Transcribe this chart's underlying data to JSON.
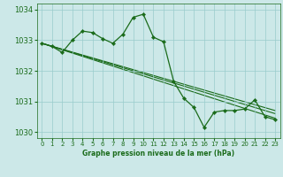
{
  "background_color": "#cce8e8",
  "grid_color": "#99cccc",
  "line_color": "#1a6b1a",
  "title": "Graphe pression niveau de la mer (hPa)",
  "xlim": [
    -0.5,
    23.5
  ],
  "ylim": [
    1029.8,
    1034.2
  ],
  "yticks": [
    1030,
    1031,
    1032,
    1033,
    1034
  ],
  "xticks": [
    0,
    1,
    2,
    3,
    4,
    5,
    6,
    7,
    8,
    9,
    10,
    11,
    12,
    13,
    14,
    15,
    16,
    17,
    18,
    19,
    20,
    21,
    22,
    23
  ],
  "main_series": {
    "x": [
      0,
      1,
      2,
      3,
      4,
      5,
      6,
      7,
      8,
      9,
      10,
      11,
      12,
      13,
      14,
      15,
      16,
      17,
      18,
      19,
      20,
      21,
      22,
      23
    ],
    "y": [
      1032.9,
      1032.8,
      1032.6,
      1033.0,
      1033.3,
      1033.25,
      1033.05,
      1032.9,
      1033.2,
      1033.75,
      1033.85,
      1033.1,
      1032.95,
      1031.65,
      1031.1,
      1030.8,
      1030.15,
      1030.65,
      1030.7,
      1030.7,
      1030.75,
      1031.05,
      1030.5,
      1030.4
    ]
  },
  "trend_lines": [
    {
      "x": [
        0,
        23
      ],
      "y": [
        1032.9,
        1030.45
      ]
    },
    {
      "x": [
        0,
        23
      ],
      "y": [
        1032.9,
        1030.6
      ]
    },
    {
      "x": [
        0,
        23
      ],
      "y": [
        1032.9,
        1030.7
      ]
    }
  ]
}
